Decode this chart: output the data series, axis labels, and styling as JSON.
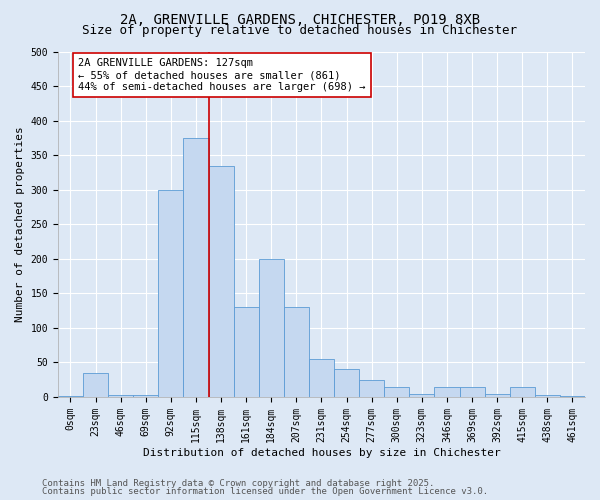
{
  "title_line1": "2A, GRENVILLE GARDENS, CHICHESTER, PO19 8XB",
  "title_line2": "Size of property relative to detached houses in Chichester",
  "xlabel": "Distribution of detached houses by size in Chichester",
  "ylabel": "Number of detached properties",
  "bar_labels": [
    "0sqm",
    "23sqm",
    "46sqm",
    "69sqm",
    "92sqm",
    "115sqm",
    "138sqm",
    "161sqm",
    "184sqm",
    "207sqm",
    "231sqm",
    "254sqm",
    "277sqm",
    "300sqm",
    "323sqm",
    "346sqm",
    "369sqm",
    "392sqm",
    "415sqm",
    "438sqm",
    "461sqm"
  ],
  "bar_values": [
    2,
    35,
    3,
    3,
    300,
    375,
    335,
    130,
    200,
    130,
    55,
    40,
    25,
    15,
    5,
    15,
    15,
    5,
    15,
    3,
    2
  ],
  "bar_color": "#c5d8f0",
  "bar_edge_color": "#5b9bd5",
  "background_color": "#dde8f5",
  "vline_color": "#cc0000",
  "vline_x": 5.5,
  "annotation_text": "2A GRENVILLE GARDENS: 127sqm\n← 55% of detached houses are smaller (861)\n44% of semi-detached houses are larger (698) →",
  "annotation_box_color": "#ffffff",
  "annotation_box_edge": "#cc0000",
  "ylim": [
    0,
    500
  ],
  "yticks": [
    0,
    50,
    100,
    150,
    200,
    250,
    300,
    350,
    400,
    450,
    500
  ],
  "footer_line1": "Contains HM Land Registry data © Crown copyright and database right 2025.",
  "footer_line2": "Contains public sector information licensed under the Open Government Licence v3.0.",
  "title_fontsize": 10,
  "subtitle_fontsize": 9,
  "axis_label_fontsize": 8,
  "tick_fontsize": 7,
  "annotation_fontsize": 7.5,
  "footer_fontsize": 6.5
}
